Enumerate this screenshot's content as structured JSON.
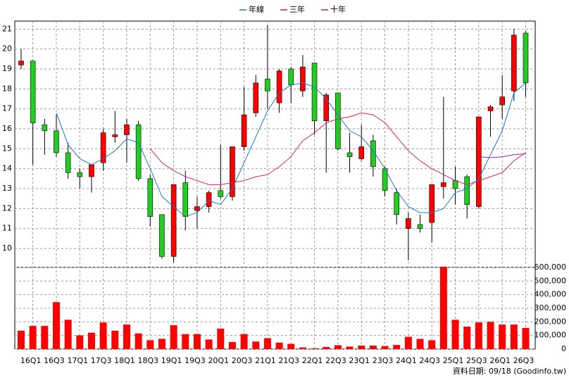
{
  "chart_data": {
    "type": "candlestick",
    "footer": "資料日期: 09/18 (Goodinfo.tw)",
    "categories": [
      null,
      "16Q1",
      null,
      "16Q3",
      null,
      "17Q1",
      null,
      "17Q3",
      null,
      "18Q1",
      null,
      "18Q3",
      null,
      "19Q1",
      null,
      "19Q3",
      null,
      "20Q1",
      null,
      "20Q3",
      null,
      "21Q1",
      null,
      "21Q3",
      null,
      "22Q1",
      null,
      "22Q3",
      null,
      "23Q1",
      null,
      "23Q3",
      null,
      "24Q1",
      null,
      "24Q3",
      null,
      "25Q1",
      null,
      "25Q3",
      null,
      "26Q1",
      null,
      "26Q3"
    ],
    "open": [
      19.2,
      19.4,
      16.2,
      15.9,
      14.8,
      13.8,
      13.6,
      14.3,
      15.6,
      15.7,
      16.2,
      13.5,
      11.7,
      9.6,
      13.3,
      11.9,
      12.1,
      12.9,
      12.6,
      15.1,
      16.8,
      18.5,
      17.3,
      19.0,
      17.9,
      19.3,
      16.4,
      17.8,
      14.8,
      14.5,
      15.4,
      14.0,
      12.8,
      11.0,
      11.2,
      11.3,
      13.1,
      13.4,
      13.6,
      12.1,
      16.9,
      17.2,
      17.9,
      20.8
    ],
    "high": [
      20.0,
      19.4,
      16.5,
      16.7,
      15.3,
      14.0,
      14.2,
      16.0,
      16.9,
      16.5,
      16.4,
      13.7,
      11.7,
      13.2,
      13.9,
      12.6,
      12.9,
      15.2,
      15.1,
      18.1,
      18.7,
      21.2,
      19.0,
      19.1,
      19.7,
      19.3,
      17.8,
      17.8,
      15.8,
      16.2,
      15.7,
      14.1,
      13.0,
      11.8,
      11.7,
      13.2,
      17.6,
      14.1,
      13.7,
      16.6,
      17.2,
      18.7,
      21.0,
      20.9
    ],
    "low": [
      19.0,
      14.2,
      14.7,
      14.6,
      13.5,
      13.0,
      12.8,
      13.9,
      15.3,
      14.3,
      13.4,
      11.1,
      9.5,
      9.3,
      10.9,
      11.0,
      11.8,
      12.5,
      12.4,
      14.9,
      16.6,
      17.0,
      16.8,
      17.3,
      17.6,
      15.7,
      13.8,
      14.9,
      13.8,
      14.4,
      13.6,
      12.6,
      11.2,
      9.4,
      10.8,
      10.3,
      12.5,
      12.2,
      11.5,
      12.0,
      15.6,
      16.5,
      17.4,
      17.6
    ],
    "close": [
      19.4,
      16.3,
      15.9,
      14.8,
      13.8,
      13.6,
      14.2,
      15.8,
      15.7,
      16.2,
      13.5,
      11.6,
      9.6,
      13.2,
      11.6,
      12.1,
      12.8,
      12.6,
      15.1,
      16.7,
      18.3,
      17.9,
      18.9,
      18.2,
      19.1,
      16.4,
      17.7,
      15.0,
      14.6,
      15.1,
      14.1,
      12.9,
      11.7,
      11.5,
      11.0,
      13.2,
      13.3,
      13.0,
      12.2,
      16.6,
      17.1,
      17.6,
      20.7,
      18.3
    ],
    "up_color": "#ff0000",
    "down_color": "#22cc22",
    "volume": [
      135000,
      170000,
      170000,
      345000,
      215000,
      100000,
      120000,
      195000,
      135000,
      180000,
      115000,
      65000,
      75000,
      175000,
      110000,
      110000,
      70000,
      150000,
      52000,
      110000,
      55000,
      80000,
      47000,
      38000,
      12000,
      5000,
      15000,
      28000,
      18000,
      25000,
      25000,
      22000,
      30000,
      90000,
      75000,
      65000,
      605000,
      215000,
      165000,
      195000,
      200000,
      180000,
      180000,
      155000
    ],
    "volume_color": "#ff0000",
    "series": [
      {
        "name": "年線",
        "color": "#1f77d0",
        "values": [
          null,
          null,
          null,
          16.8,
          15.2,
          14.5,
          14.2,
          14.5,
          14.9,
          15.5,
          15.3,
          14.0,
          12.6,
          12.1,
          11.6,
          11.8,
          12.4,
          12.2,
          13.0,
          14.3,
          15.6,
          16.9,
          17.8,
          18.2,
          18.3,
          18.1,
          17.5,
          16.7,
          15.9,
          15.6,
          14.9,
          14.0,
          12.9,
          12.1,
          11.8,
          11.8,
          12.0,
          12.8,
          13.0,
          13.5,
          14.7,
          15.9,
          17.8,
          18.3
        ]
      },
      {
        "name": "三年",
        "color": "#e0205a",
        "values": [
          null,
          null,
          null,
          null,
          null,
          null,
          null,
          null,
          null,
          null,
          null,
          15.0,
          14.3,
          13.9,
          13.6,
          13.4,
          13.2,
          13.2,
          13.3,
          13.4,
          13.6,
          13.7,
          14.1,
          14.6,
          15.4,
          15.8,
          16.3,
          16.5,
          16.6,
          16.8,
          16.7,
          16.3,
          15.6,
          14.9,
          14.4,
          14.0,
          13.7,
          13.4,
          13.2,
          13.4,
          13.6,
          13.8,
          14.4,
          14.8
        ]
      },
      {
        "name": "十年",
        "color": "#a020b0",
        "values": [
          null,
          null,
          null,
          null,
          null,
          null,
          null,
          null,
          null,
          null,
          null,
          null,
          null,
          null,
          null,
          null,
          null,
          null,
          null,
          null,
          null,
          null,
          null,
          null,
          null,
          null,
          null,
          null,
          null,
          null,
          null,
          null,
          null,
          null,
          null,
          null,
          null,
          null,
          null,
          14.6,
          14.55,
          14.6,
          14.7,
          14.75
        ]
      }
    ],
    "ylim": [
      9.05,
      21.4
    ],
    "yticks": [
      10,
      11,
      12,
      13,
      14,
      15,
      16,
      17,
      18,
      19,
      20,
      21
    ],
    "y2lim": [
      0,
      600000
    ],
    "y2ticks": [
      0,
      {
        "value": 100000,
        "label": "100,000"
      },
      {
        "value": 200000,
        "label": "200,000"
      },
      {
        "value": 300000,
        "label": "300,000"
      },
      {
        "value": 400000,
        "label": "400,000"
      },
      {
        "value": 500000,
        "label": "500,000"
      },
      {
        "value": 600000,
        "label": "600,000"
      }
    ],
    "grid": true
  }
}
